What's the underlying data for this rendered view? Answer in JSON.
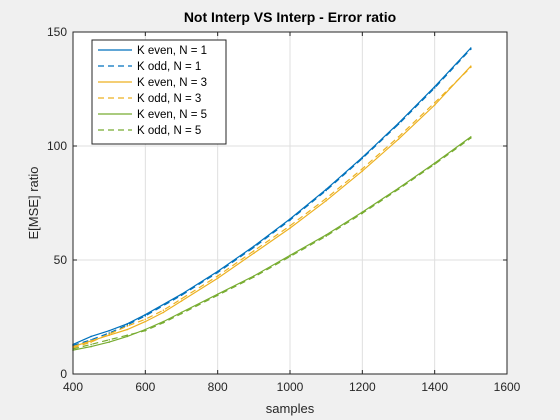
{
  "chart_data": {
    "type": "line",
    "title": "Not Interp VS Interp - Error ratio",
    "xlabel": "samples",
    "ylabel": "E[MSE] ratio",
    "xlim": [
      400,
      1600
    ],
    "ylim": [
      0,
      150
    ],
    "xticks": [
      400,
      600,
      800,
      1000,
      1200,
      1400,
      1600
    ],
    "yticks": [
      0,
      50,
      100,
      150
    ],
    "grid": true,
    "legend_position": "top-left",
    "colors": {
      "blue": "#0072BD",
      "orange": "#EDB120",
      "green": "#77AC30"
    },
    "series": [
      {
        "name": "K even, N = 1",
        "color": "#0072BD",
        "style": "solid",
        "x": [
          400,
          450,
          500,
          550,
          600,
          700,
          800,
          900,
          1000,
          1100,
          1200,
          1300,
          1400,
          1500
        ],
        "y": [
          13,
          16.5,
          19,
          22,
          26,
          35,
          45,
          56,
          68,
          81,
          95,
          110,
          126,
          143
        ]
      },
      {
        "name": "K odd, N = 1",
        "color": "#0072BD",
        "style": "dashed",
        "x": [
          400,
          450,
          500,
          550,
          600,
          700,
          800,
          900,
          1000,
          1100,
          1200,
          1300,
          1400,
          1500
        ],
        "y": [
          12.5,
          15,
          18,
          21.5,
          25.5,
          34.5,
          44.5,
          55.5,
          67.5,
          80.5,
          94.5,
          109.5,
          125.5,
          142.5
        ]
      },
      {
        "name": "K even, N = 3",
        "color": "#EDB120",
        "style": "solid",
        "x": [
          400,
          450,
          500,
          550,
          600,
          650,
          700,
          800,
          900,
          1000,
          1100,
          1200,
          1300,
          1400,
          1500
        ],
        "y": [
          12,
          14.5,
          17,
          19.5,
          23,
          27,
          32,
          42,
          53,
          64,
          76,
          89,
          103,
          118,
          135
        ]
      },
      {
        "name": "K odd, N = 3",
        "color": "#EDB120",
        "style": "dashed",
        "x": [
          400,
          450,
          500,
          550,
          600,
          650,
          700,
          800,
          900,
          1000,
          1100,
          1200,
          1300,
          1400,
          1500
        ],
        "y": [
          11.5,
          14,
          17.5,
          21,
          24,
          28,
          33,
          43,
          54,
          65,
          77,
          90,
          104,
          119,
          134.5
        ]
      },
      {
        "name": "K even, N = 5",
        "color": "#77AC30",
        "style": "solid",
        "x": [
          400,
          450,
          500,
          550,
          600,
          650,
          700,
          800,
          900,
          1000,
          1100,
          1200,
          1300,
          1400,
          1500
        ],
        "y": [
          10.5,
          12,
          14,
          16.5,
          19.5,
          23,
          27,
          35,
          43,
          52,
          61,
          71,
          81.5,
          92.5,
          104
        ]
      },
      {
        "name": "K odd, N = 5",
        "color": "#77AC30",
        "style": "dashed",
        "x": [
          400,
          450,
          500,
          550,
          600,
          650,
          700,
          800,
          900,
          1000,
          1100,
          1200,
          1300,
          1400,
          1500
        ],
        "y": [
          11,
          13,
          15,
          17,
          19,
          22.5,
          26.5,
          34.5,
          42.5,
          51.5,
          60.5,
          70.5,
          81,
          92,
          103.5
        ]
      }
    ]
  }
}
